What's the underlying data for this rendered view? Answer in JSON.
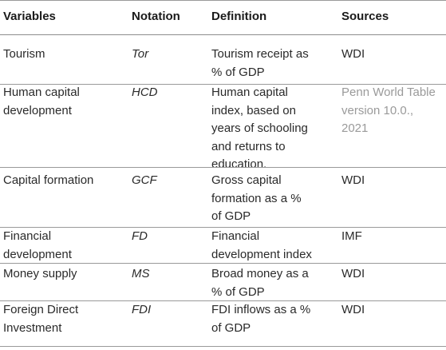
{
  "headers": [
    "Variables",
    "Notation",
    "Definition",
    "Sources"
  ],
  "rows": [
    {
      "variable": "Tourism",
      "notation": "Tor",
      "definition": "Tourism receipt as\n% of GDP",
      "source": "WDI"
    },
    {
      "variable": "Human capital\ndevelopment",
      "notation": "HCD",
      "definition": "Human capital\nindex, based on\nyears of schooling\nand returns to\neducation.",
      "source": "Penn World Table\nversion 10.0.,\n2021"
    },
    {
      "variable": "Capital formation",
      "notation": "GCF",
      "definition": "Gross capital\nformation as a %\nof GDP",
      "source": "WDI"
    },
    {
      "variable": "Financial\ndevelopment",
      "notation": "FD",
      "definition": "Financial\ndevelopment index",
      "source": "IMF"
    },
    {
      "variable": "Money supply",
      "notation": "MS",
      "definition": "Broad money as a\n% of GDP",
      "source": "WDI"
    },
    {
      "variable": "Foreign Direct\nInvestment",
      "notation": "FDI",
      "definition": "FDI inflows as a %\nof GDP",
      "source": "WDI"
    }
  ]
}
